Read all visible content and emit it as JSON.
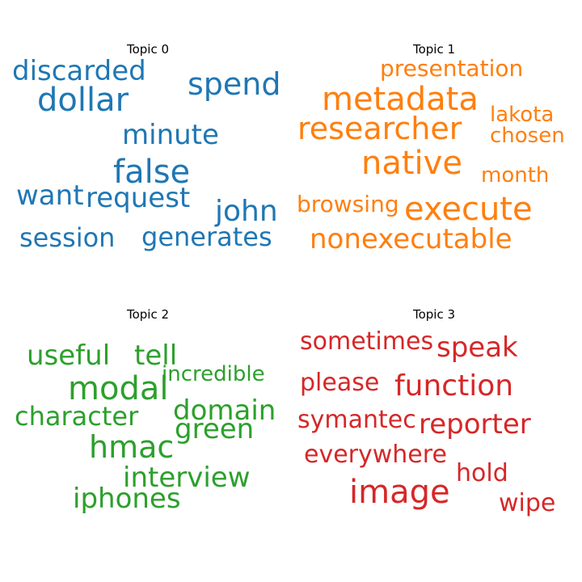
{
  "chart_data": {
    "type": "wordcloud",
    "panels": [
      {
        "title": "Topic 0",
        "color": "#1f77b4",
        "words": [
          "discarded",
          "spend",
          "dollar",
          "minute",
          "false",
          "want",
          "request",
          "john",
          "session",
          "generates"
        ]
      },
      {
        "title": "Topic 1",
        "color": "#ff7f0e",
        "words": [
          "presentation",
          "metadata",
          "lakota",
          "researcher",
          "chosen",
          "native",
          "month",
          "browsing",
          "execute",
          "nonexecutable"
        ]
      },
      {
        "title": "Topic 2",
        "color": "#2ca02c",
        "words": [
          "useful",
          "tell",
          "incredible",
          "modal",
          "domain",
          "character",
          "green",
          "hmac",
          "interview",
          "iphones"
        ]
      },
      {
        "title": "Topic 3",
        "color": "#d62728",
        "words": [
          "sometimes",
          "speak",
          "please",
          "function",
          "symantec",
          "reporter",
          "everywhere",
          "hold",
          "image",
          "wipe"
        ]
      }
    ]
  }
}
